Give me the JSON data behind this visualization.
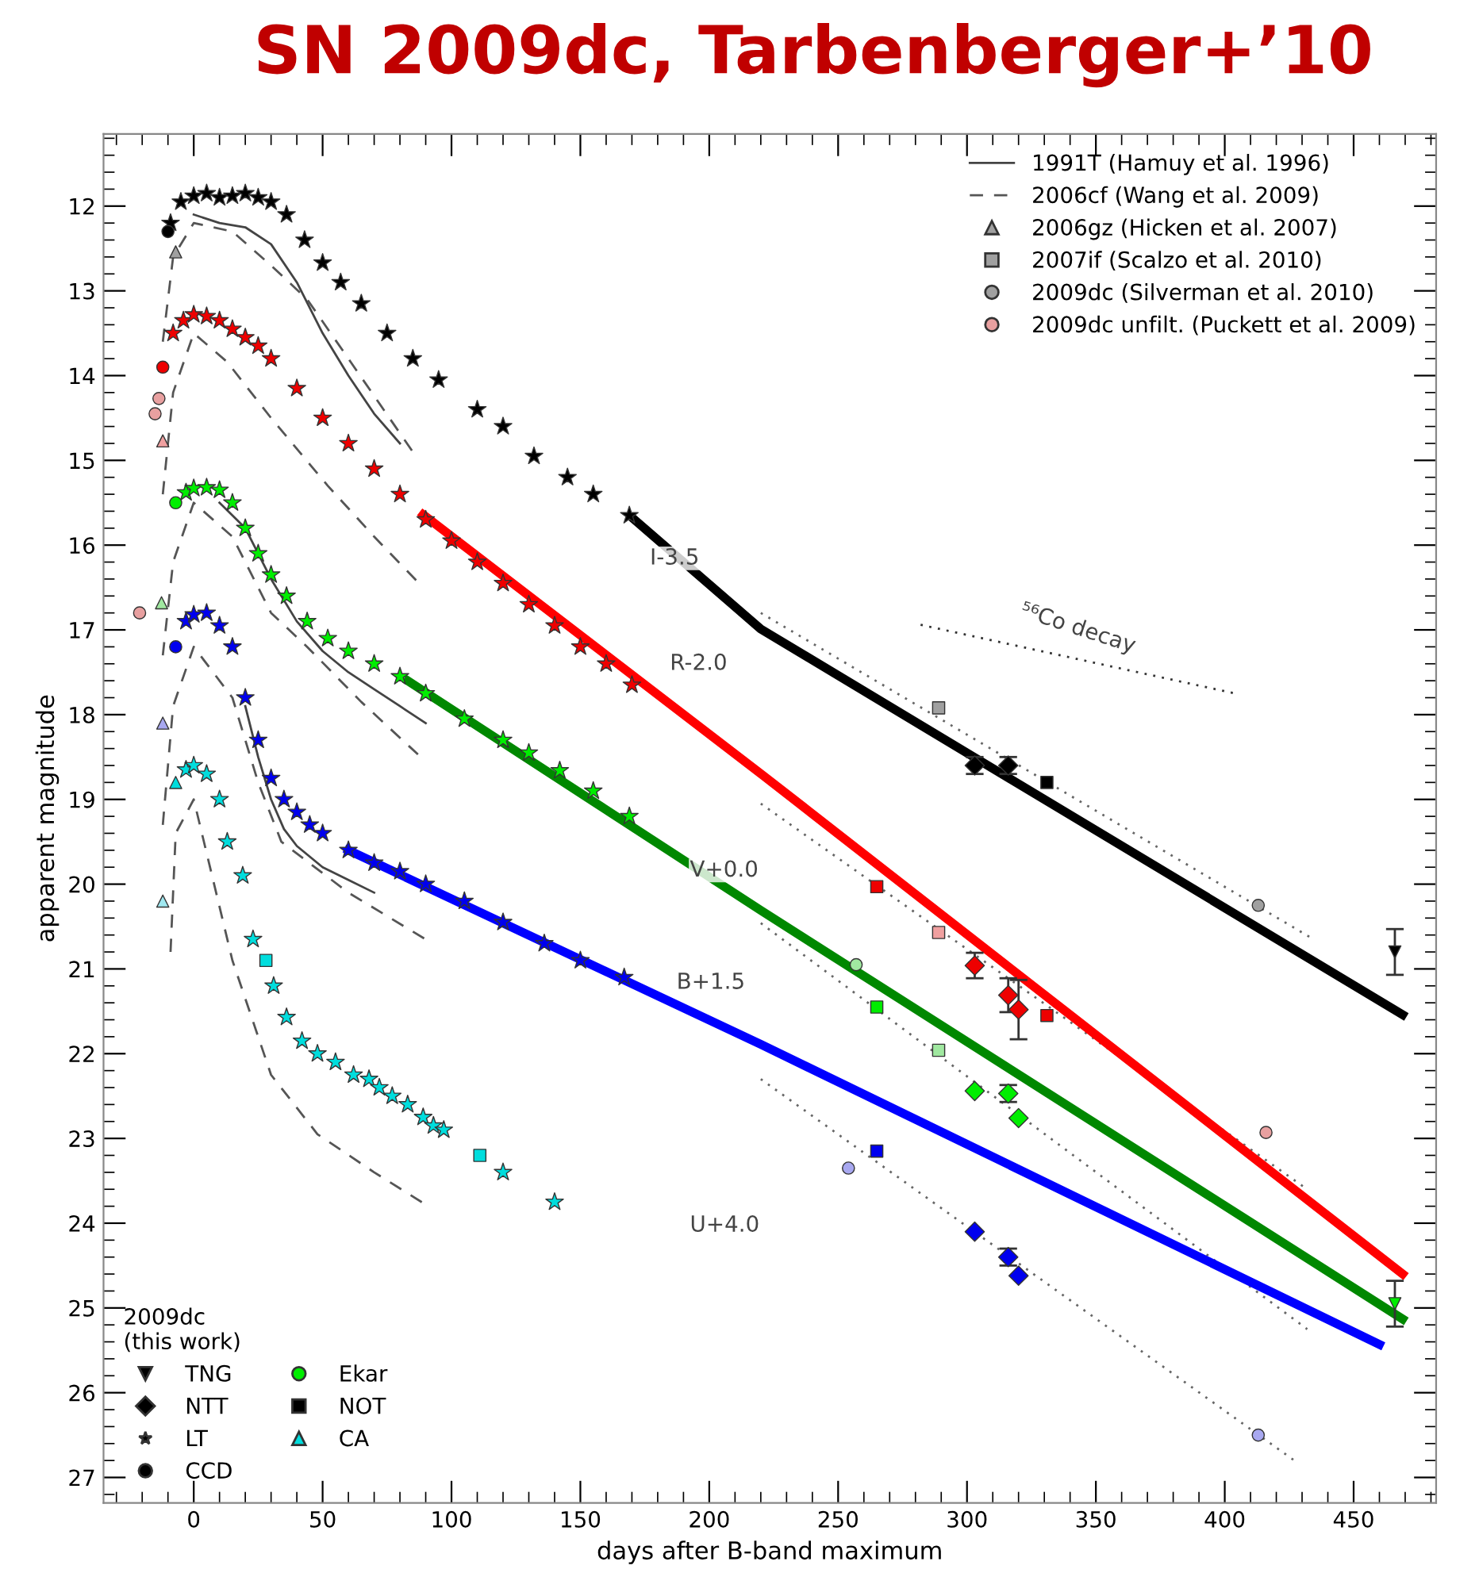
{
  "chart_data": {
    "type": "scatter",
    "title": "SN 2009dc, Tarbenberger+’10",
    "xlabel": "days after B-band maximum",
    "ylabel": "apparent magnitude",
    "legend_title": "2009dc\n(this work)",
    "xlim": [
      -35,
      482
    ],
    "ylim": [
      27.3,
      11.15
    ],
    "xticks": [
      0,
      50,
      100,
      150,
      200,
      250,
      300,
      350,
      400,
      450
    ],
    "yticks": [
      12,
      13,
      14,
      15,
      16,
      17,
      18,
      19,
      20,
      21,
      22,
      23,
      24,
      25,
      26,
      27
    ],
    "grid": false,
    "legend": "top right",
    "annotations": [
      "I-3.5",
      "R-2.0",
      "V+0.0",
      "B+1.5",
      "U+4.0",
      {
        "text": "⁵⁶Co decay",
        "x": 343,
        "y": 17.35
      }
    ],
    "series": [
      {
        "name": "1991T (Hamuy et al. 1996)",
        "type": "line",
        "line_style": "solid",
        "color": "#444444",
        "x": [
          0,
          10,
          20,
          30,
          40,
          50,
          60,
          70,
          80,
          null,
          10,
          20,
          30,
          40,
          50,
          60,
          70,
          80,
          90,
          null,
          20,
          25,
          30,
          35,
          40,
          50,
          60,
          70
        ],
        "values": [
          12.1,
          12.2,
          12.25,
          12.45,
          12.9,
          13.5,
          14.0,
          14.45,
          14.8,
          null,
          15.5,
          15.8,
          16.4,
          16.9,
          17.25,
          17.5,
          17.7,
          17.9,
          18.1,
          null,
          17.9,
          18.5,
          19.0,
          19.35,
          19.55,
          19.8,
          19.95,
          20.1
        ]
      },
      {
        "name": "2006cf (Wang et al. 2009)",
        "type": "line",
        "line_style": "dashed",
        "color": "#555555",
        "x": [
          -12,
          -8,
          0,
          15,
          30,
          44,
          60,
          85,
          null,
          -12,
          -8,
          0,
          13,
          30,
          52,
          70,
          89,
          null,
          -12,
          -8,
          0,
          15,
          30,
          44,
          65,
          87,
          null,
          -12,
          -8,
          0,
          15,
          25,
          34,
          60,
          91,
          null,
          -9,
          -7,
          0,
          15,
          30,
          48,
          70,
          91
        ],
        "values": [
          13.6,
          12.6,
          12.2,
          12.3,
          12.7,
          13.1,
          13.8,
          14.9,
          null,
          15.4,
          14.2,
          13.5,
          13.84,
          14.5,
          15.3,
          15.9,
          16.5,
          null,
          17.3,
          16.2,
          15.5,
          15.9,
          16.8,
          17.2,
          17.85,
          18.47,
          null,
          19.3,
          17.9,
          17.2,
          17.8,
          18.8,
          19.5,
          20.1,
          20.67,
          null,
          20.8,
          19.4,
          19.0,
          20.9,
          22.25,
          22.95,
          23.4,
          23.8
        ]
      },
      {
        "name": "2006gz (Hicken et al. 2007)",
        "marker": "triangle",
        "x": [
          -7,
          -12,
          -12.5,
          -12,
          -12
        ],
        "values": [
          12.54,
          14.77,
          16.68,
          18.1,
          20.2
        ],
        "colors": [
          "#a0a0a0",
          "#f0a0a0",
          "#a0e8a0",
          "#a8a8f0",
          "#a0e8f0"
        ]
      },
      {
        "name": "2007if (Scalzo et al. 2010)",
        "marker": "square",
        "x": [
          289,
          289,
          289
        ],
        "values": [
          17.92,
          20.57,
          21.96
        ],
        "colors": [
          "#a0a0a0",
          "#f0a0a0",
          "#a0e8a0"
        ]
      },
      {
        "name": "2009dc (Silverman et al. 2010)",
        "marker": "circle",
        "x": [
          413,
          257,
          254,
          413
        ],
        "values": [
          20.25,
          20.95,
          23.35,
          26.5
        ],
        "colors": [
          "#a0a0a0",
          "#a0e8a0",
          "#a8a8f0",
          "#a8a8f0"
        ]
      },
      {
        "name": "2009dc unfilt. (Puckett et al. 2009)",
        "marker": "circle",
        "x": [
          -15,
          -13.5,
          -21,
          416
        ],
        "values": [
          14.45,
          14.27,
          16.8,
          22.93
        ],
        "colors": [
          "#e8a0a0",
          "#e8a0a0",
          "#e8a0a0",
          "#e8a0a0"
        ]
      },
      {
        "type": "line",
        "line_style": "dotted",
        "color": "#666666",
        "x": [
          220,
          435
        ],
        "values": [
          16.8,
          20.66
        ]
      },
      {
        "type": "line",
        "line_style": "dotted",
        "color": "#666666",
        "x": [
          220,
          432
        ],
        "values": [
          19.05,
          23.6
        ]
      },
      {
        "type": "line",
        "line_style": "dotted",
        "color": "#666666",
        "x": [
          220,
          432
        ],
        "values": [
          20.46,
          25.25
        ]
      },
      {
        "type": "line",
        "line_style": "dotted",
        "color": "#666666",
        "x": [
          220,
          427
        ],
        "values": [
          22.3,
          26.8
        ]
      },
      {
        "type": "line",
        "line_style": "dotted",
        "color": "#333333",
        "x": [
          282,
          404
        ],
        "values": [
          16.94,
          17.75
        ]
      },
      {
        "type": "line",
        "line_style": "solid",
        "color": "#000000",
        "x": [
          171,
          220,
          469
        ],
        "values": [
          15.7,
          16.99,
          21.54
        ]
      },
      {
        "type": "line",
        "line_style": "solid",
        "color": "#ff0000",
        "x": [
          89,
          221,
          469
        ],
        "values": [
          15.64,
          18.72,
          24.6
        ]
      },
      {
        "type": "line",
        "line_style": "solid",
        "color": "#008800",
        "x": [
          83,
          220,
          469
        ],
        "values": [
          17.6,
          20.31,
          25.13
        ]
      },
      {
        "type": "line",
        "line_style": "solid",
        "color": "#0000ff",
        "x": [
          60,
          220,
          460
        ],
        "values": [
          19.6,
          21.89,
          25.43
        ]
      },
      {
        "name": "TNG",
        "marker": "triangle_down",
        "x": [
          466,
          466
        ],
        "values": [
          20.8,
          24.95
        ],
        "errors": [
          0.27,
          0.27
        ],
        "colors": [
          "#000000",
          "#00ee00"
        ]
      },
      {
        "name": "NTT",
        "marker": "diamond",
        "x": [
          303,
          316,
          303,
          316,
          320,
          303,
          316,
          320,
          303,
          316,
          320
        ],
        "values": [
          18.6,
          18.6,
          20.96,
          21.31,
          21.48,
          22.44,
          22.47,
          22.76,
          24.1,
          24.4,
          24.62
        ],
        "errors": [
          0.1,
          0.1,
          0.15,
          0.2,
          0.35,
          null,
          0.1,
          null,
          null,
          0.1,
          null
        ],
        "colors": [
          "#000000",
          "#000000",
          "#ee0000",
          "#ee0000",
          "#ee0000",
          "#00ee00",
          "#00ee00",
          "#00ee00",
          "#0000ee",
          "#0000ee",
          "#0000ee"
        ]
      },
      {
        "name": "LT",
        "marker": "star",
        "x": [
          -9,
          -5,
          0,
          5,
          10,
          15,
          20,
          25,
          30,
          36,
          43,
          50,
          57,
          65,
          75,
          85,
          95,
          110,
          120,
          132,
          145,
          155,
          169,
          -8,
          -4,
          0,
          5,
          10,
          15,
          20,
          25,
          30,
          40,
          50,
          60,
          70,
          80,
          90,
          100,
          110,
          120,
          130,
          140,
          150,
          160,
          170,
          -3,
          0,
          5,
          10,
          15,
          20,
          25,
          30,
          36,
          44,
          52,
          60,
          70,
          80,
          90,
          105,
          120,
          130,
          142,
          155,
          169,
          -3,
          0,
          5,
          10,
          15,
          20,
          25,
          30,
          35,
          40,
          45,
          50,
          60,
          70,
          80,
          90,
          105,
          120,
          136,
          150,
          167,
          -3,
          0,
          5,
          10,
          13,
          19,
          23,
          31,
          36,
          42,
          48,
          55,
          62,
          68,
          72,
          77,
          83,
          89,
          93,
          97,
          120,
          140
        ],
        "values": [
          12.2,
          11.95,
          11.88,
          11.85,
          11.9,
          11.88,
          11.85,
          11.9,
          11.95,
          12.1,
          12.4,
          12.67,
          12.9,
          13.15,
          13.5,
          13.8,
          14.05,
          14.4,
          14.6,
          14.95,
          15.2,
          15.4,
          15.65,
          13.5,
          13.35,
          13.28,
          13.3,
          13.35,
          13.45,
          13.55,
          13.65,
          13.8,
          14.15,
          14.5,
          14.8,
          15.1,
          15.4,
          15.7,
          15.95,
          16.2,
          16.45,
          16.7,
          16.95,
          17.2,
          17.4,
          17.65,
          15.38,
          15.33,
          15.32,
          15.35,
          15.5,
          15.8,
          16.1,
          16.35,
          16.6,
          16.9,
          17.1,
          17.25,
          17.4,
          17.55,
          17.75,
          18.05,
          18.3,
          18.45,
          18.66,
          18.9,
          19.2,
          16.9,
          16.82,
          16.8,
          16.95,
          17.2,
          17.8,
          18.3,
          18.75,
          19.0,
          19.15,
          19.3,
          19.4,
          19.6,
          19.75,
          19.85,
          20.0,
          20.2,
          20.45,
          20.7,
          20.9,
          21.1,
          18.65,
          18.6,
          18.7,
          19.0,
          19.5,
          19.9,
          20.65,
          21.2,
          21.57,
          21.85,
          22.0,
          22.1,
          22.25,
          22.3,
          22.4,
          22.5,
          22.6,
          22.75,
          22.85,
          22.9,
          23.4,
          23.75
        ],
        "colors": [
          "#000000",
          "#000000",
          "#000000",
          "#000000",
          "#000000",
          "#000000",
          "#000000",
          "#000000",
          "#000000",
          "#000000",
          "#000000",
          "#000000",
          "#000000",
          "#000000",
          "#000000",
          "#000000",
          "#000000",
          "#000000",
          "#000000",
          "#000000",
          "#000000",
          "#000000",
          "#000000",
          "#ee0000",
          "#ee0000",
          "#ee0000",
          "#ee0000",
          "#ee0000",
          "#ee0000",
          "#ee0000",
          "#ee0000",
          "#ee0000",
          "#ee0000",
          "#ee0000",
          "#ee0000",
          "#ee0000",
          "#ee0000",
          "#ee0000",
          "#ee0000",
          "#ee0000",
          "#ee0000",
          "#ee0000",
          "#ee0000",
          "#ee0000",
          "#ee0000",
          "#ee0000",
          "#00ee00",
          "#00ee00",
          "#00ee00",
          "#00ee00",
          "#00ee00",
          "#00ee00",
          "#00ee00",
          "#00ee00",
          "#00ee00",
          "#00ee00",
          "#00ee00",
          "#00ee00",
          "#00ee00",
          "#00ee00",
          "#00ee00",
          "#00ee00",
          "#00ee00",
          "#00ee00",
          "#00ee00",
          "#00ee00",
          "#00ee00",
          "#0000ee",
          "#0000ee",
          "#0000ee",
          "#0000ee",
          "#0000ee",
          "#0000ee",
          "#0000ee",
          "#0000ee",
          "#0000ee",
          "#0000ee",
          "#0000ee",
          "#0000ee",
          "#0000ee",
          "#0000ee",
          "#0000ee",
          "#0000ee",
          "#0000ee",
          "#0000ee",
          "#0000ee",
          "#0000ee",
          "#0000ee",
          "#00dddd",
          "#00dddd",
          "#00dddd",
          "#00dddd",
          "#00dddd",
          "#00dddd",
          "#00dddd",
          "#00dddd",
          "#00dddd",
          "#00dddd",
          "#00dddd",
          "#00dddd",
          "#00dddd",
          "#00dddd",
          "#00dddd",
          "#00dddd",
          "#00dddd",
          "#00dddd",
          "#00dddd",
          "#00dddd",
          "#00dddd",
          "#00dddd"
        ]
      },
      {
        "name": "CCD",
        "marker": "circle",
        "x": [
          -10,
          -12
        ],
        "values": [
          12.3,
          13.9
        ],
        "colors": [
          "#000000",
          "#ee0000"
        ]
      },
      {
        "name": "Ekar",
        "marker": "circle",
        "x": [
          -7,
          -7
        ],
        "values": [
          15.5,
          17.2
        ],
        "colors": [
          "#00ee00",
          "#0000ee"
        ]
      },
      {
        "name": "NOT",
        "marker": "square",
        "x": [
          331,
          265,
          331,
          265,
          265,
          28,
          111
        ],
        "values": [
          18.8,
          20.03,
          21.55,
          21.45,
          23.15,
          20.9,
          23.2
        ],
        "colors": [
          "#000000",
          "#ee0000",
          "#ee0000",
          "#00ee00",
          "#0000ee",
          "#00dddd",
          "#00dddd"
        ]
      },
      {
        "name": "CA",
        "marker": "triangle",
        "x": [
          -7
        ],
        "values": [
          18.8
        ],
        "colors": [
          "#00dddd"
        ]
      }
    ]
  }
}
